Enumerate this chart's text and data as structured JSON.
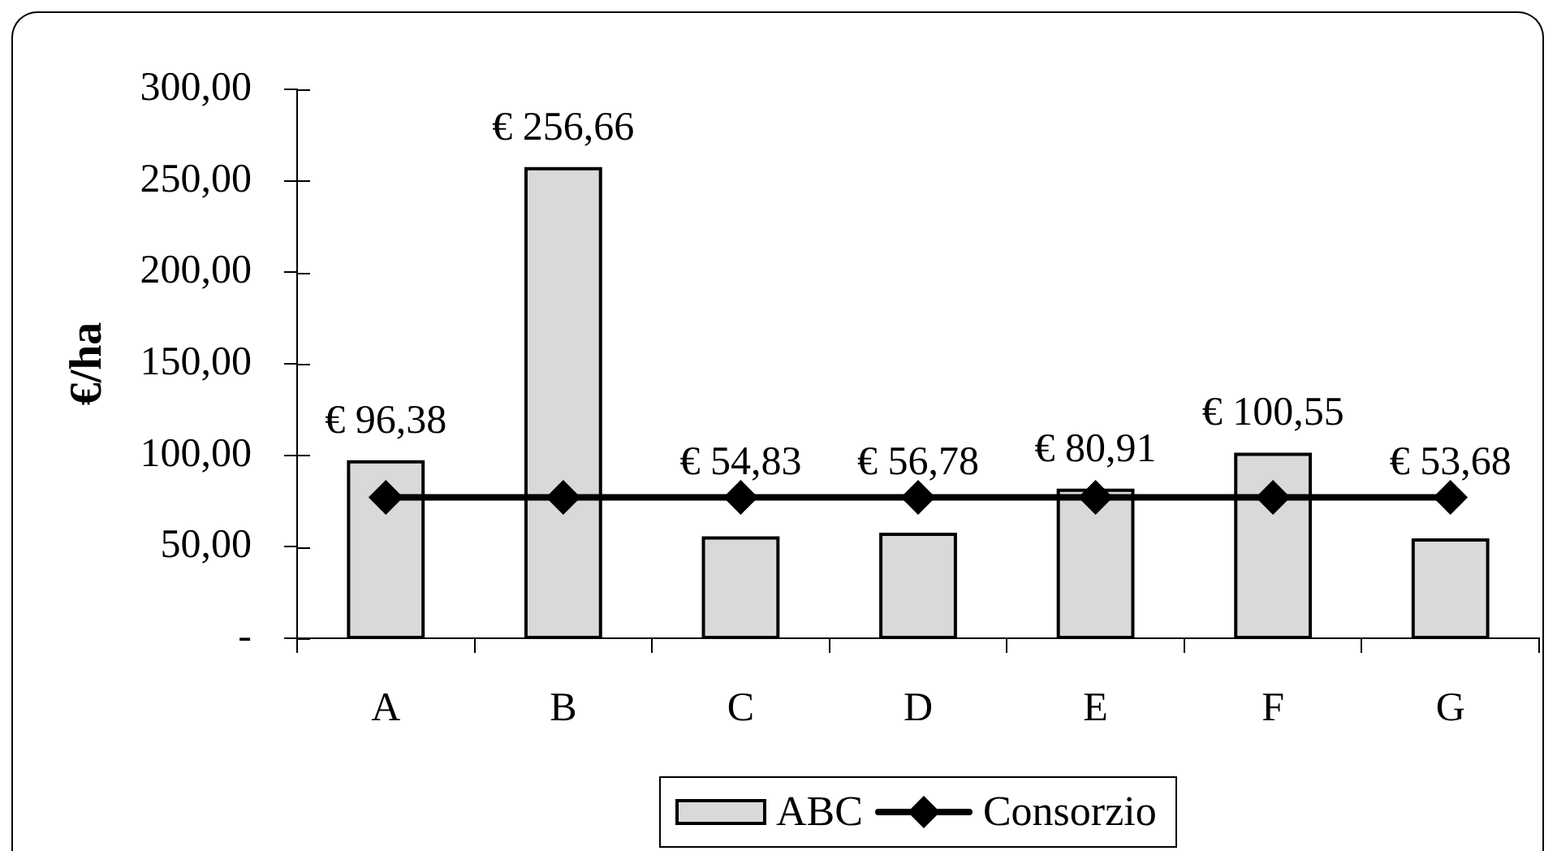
{
  "chart_data": {
    "type": "bar",
    "ylabel": "€/ha",
    "categories": [
      "A",
      "B",
      "C",
      "D",
      "E",
      "F",
      "G"
    ],
    "series": [
      {
        "name": "ABC",
        "color": "#d9d9d9",
        "values": [
          96.38,
          256.66,
          54.83,
          56.78,
          80.91,
          100.55,
          53.68
        ],
        "value_labels": [
          "€ 96,38",
          "€ 256,66",
          "€ 54,83",
          "€ 56,78",
          "€ 80,91",
          "€ 100,55",
          "€ 53,68"
        ]
      },
      {
        "name": "Consorzio",
        "type": "line",
        "color": "#000000",
        "marker": "diamond",
        "values": [
          77,
          77,
          77,
          77,
          77,
          77,
          77
        ]
      }
    ],
    "ylim": [
      0,
      300
    ],
    "yticks": [
      {
        "value": 0,
        "label": "-"
      },
      {
        "value": 50,
        "label": "50,00"
      },
      {
        "value": 100,
        "label": "100,00"
      },
      {
        "value": 150,
        "label": "150,00"
      },
      {
        "value": 200,
        "label": "200,00"
      },
      {
        "value": 250,
        "label": "250,00"
      },
      {
        "value": 300,
        "label": "300,00"
      }
    ],
    "grid": false,
    "legend": "bottom"
  }
}
